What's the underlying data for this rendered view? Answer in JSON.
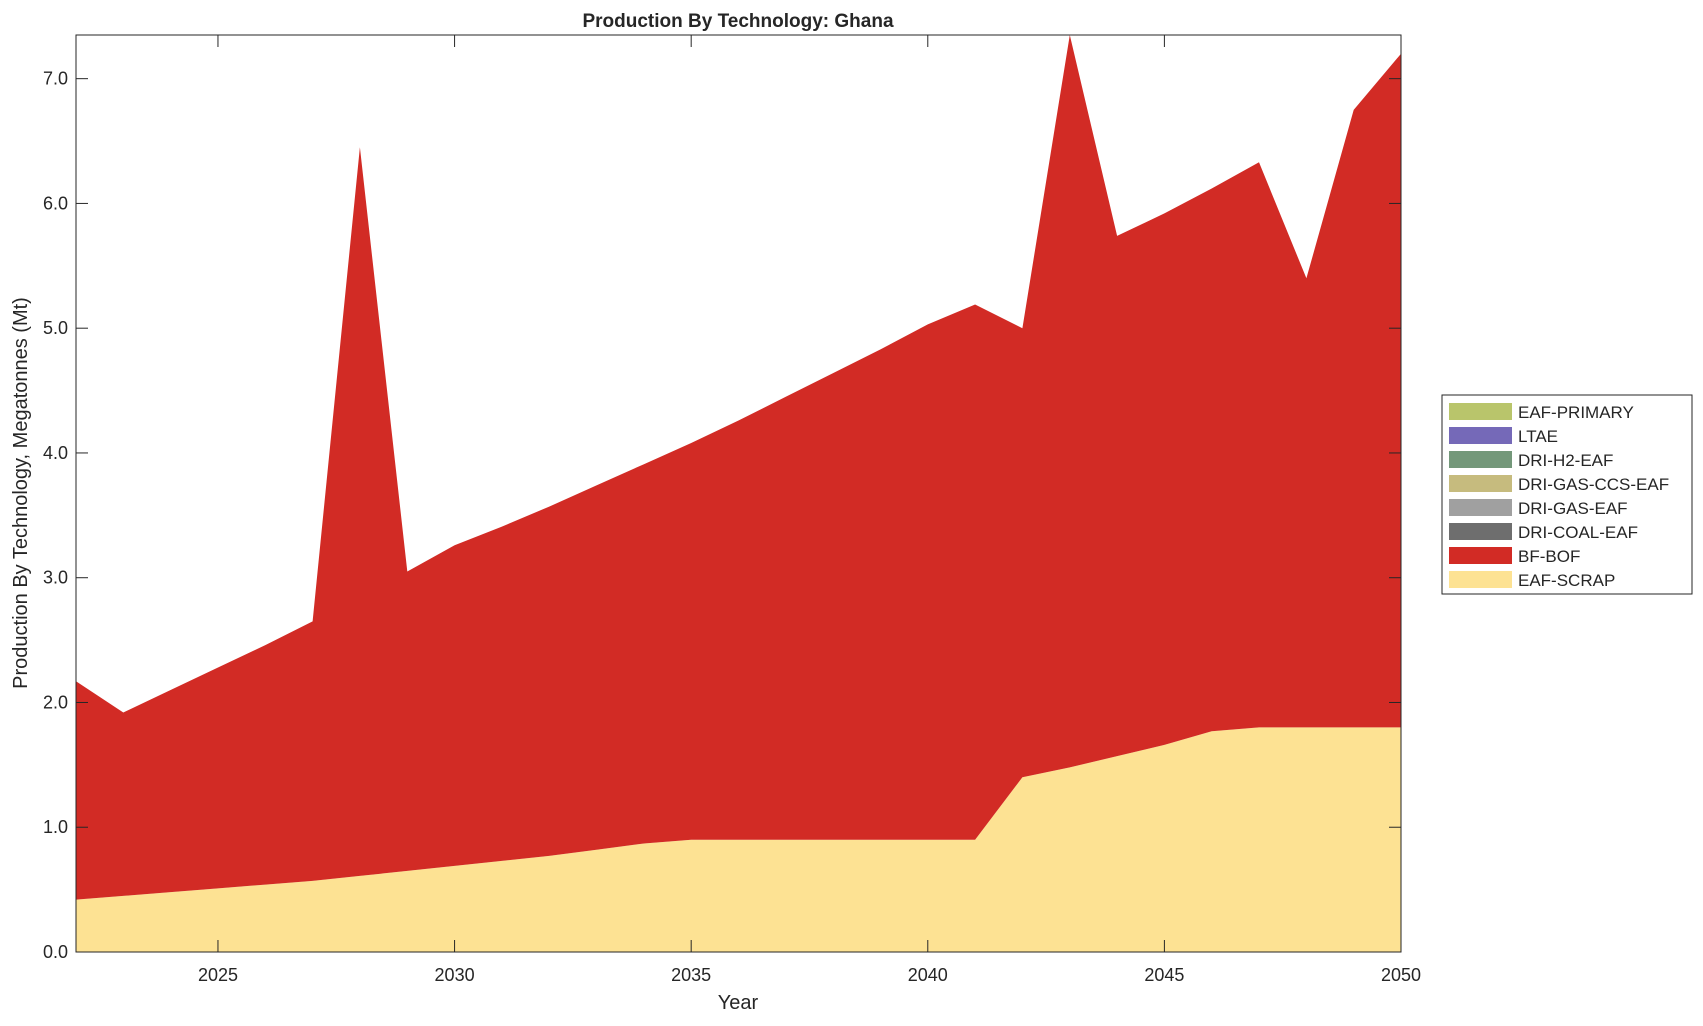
{
  "chart_data": {
    "type": "area",
    "stacked": true,
    "title": "Production By Technology: Ghana",
    "xlabel": "Year",
    "ylabel": "Production By Technology, Megatonnes (Mt)",
    "xlim": [
      2022,
      2050
    ],
    "ylim": [
      0,
      7.35
    ],
    "xticks": [
      2025,
      2030,
      2035,
      2040,
      2045,
      2050
    ],
    "yticks": [
      "0.0",
      "1.0",
      "2.0",
      "3.0",
      "4.0",
      "5.0",
      "6.0",
      "7.0"
    ],
    "legend_placement": "right",
    "x": [
      2022,
      2023,
      2024,
      2025,
      2026,
      2027,
      2028,
      2029,
      2030,
      2031,
      2032,
      2033,
      2034,
      2035,
      2036,
      2037,
      2038,
      2039,
      2040,
      2041,
      2042,
      2043,
      2044,
      2045,
      2046,
      2047,
      2048,
      2049,
      2050
    ],
    "series": [
      {
        "name": "EAF-SCRAP",
        "color": "#fde293",
        "values": [
          0.42,
          0.45,
          0.48,
          0.51,
          0.54,
          0.57,
          0.61,
          0.65,
          0.69,
          0.73,
          0.77,
          0.82,
          0.87,
          0.9,
          0.9,
          0.9,
          0.9,
          0.9,
          0.9,
          0.9,
          1.4,
          1.48,
          1.57,
          1.66,
          1.77,
          1.8,
          1.8,
          1.8,
          1.8
        ]
      },
      {
        "name": "BF-BOF",
        "color": "#d22b25",
        "values": [
          1.75,
          1.47,
          1.62,
          1.77,
          1.92,
          2.08,
          5.84,
          2.4,
          2.57,
          2.68,
          2.8,
          2.92,
          3.04,
          3.18,
          3.36,
          3.55,
          3.74,
          3.93,
          4.13,
          4.29,
          3.6,
          5.87,
          4.17,
          4.26,
          4.35,
          4.53,
          3.6,
          4.95,
          5.4
        ]
      },
      {
        "name": "DRI-COAL-EAF",
        "color": "#6e6e6e",
        "values": [
          0,
          0,
          0,
          0,
          0,
          0,
          0,
          0,
          0,
          0,
          0,
          0,
          0,
          0,
          0,
          0,
          0,
          0,
          0,
          0,
          0,
          0,
          0,
          0,
          0,
          0,
          0,
          0,
          0
        ]
      },
      {
        "name": "DRI-GAS-EAF",
        "color": "#a0a0a0",
        "values": [
          0,
          0,
          0,
          0,
          0,
          0,
          0,
          0,
          0,
          0,
          0,
          0,
          0,
          0,
          0,
          0,
          0,
          0,
          0,
          0,
          0,
          0,
          0,
          0,
          0,
          0,
          0,
          0,
          0
        ]
      },
      {
        "name": "DRI-GAS-CCS-EAF",
        "color": "#c6bb7e",
        "values": [
          0,
          0,
          0,
          0,
          0,
          0,
          0,
          0,
          0,
          0,
          0,
          0,
          0,
          0,
          0,
          0,
          0,
          0,
          0,
          0,
          0,
          0,
          0,
          0,
          0,
          0,
          0,
          0,
          0
        ]
      },
      {
        "name": "DRI-H2-EAF",
        "color": "#74987a",
        "values": [
          0,
          0,
          0,
          0,
          0,
          0,
          0,
          0,
          0,
          0,
          0,
          0,
          0,
          0,
          0,
          0,
          0,
          0,
          0,
          0,
          0,
          0,
          0,
          0,
          0,
          0,
          0,
          0,
          0
        ]
      },
      {
        "name": "LTAE",
        "color": "#7569b8",
        "values": [
          0,
          0,
          0,
          0,
          0,
          0,
          0,
          0,
          0,
          0,
          0,
          0,
          0,
          0,
          0,
          0,
          0,
          0,
          0,
          0,
          0,
          0,
          0,
          0,
          0,
          0,
          0,
          0,
          0
        ]
      },
      {
        "name": "EAF-PRIMARY",
        "color": "#b9c56b",
        "values": [
          0,
          0,
          0,
          0,
          0,
          0,
          0,
          0,
          0,
          0,
          0,
          0,
          0,
          0,
          0,
          0,
          0,
          0,
          0,
          0,
          0,
          0,
          0,
          0,
          0,
          0,
          0,
          0,
          0
        ]
      }
    ]
  }
}
